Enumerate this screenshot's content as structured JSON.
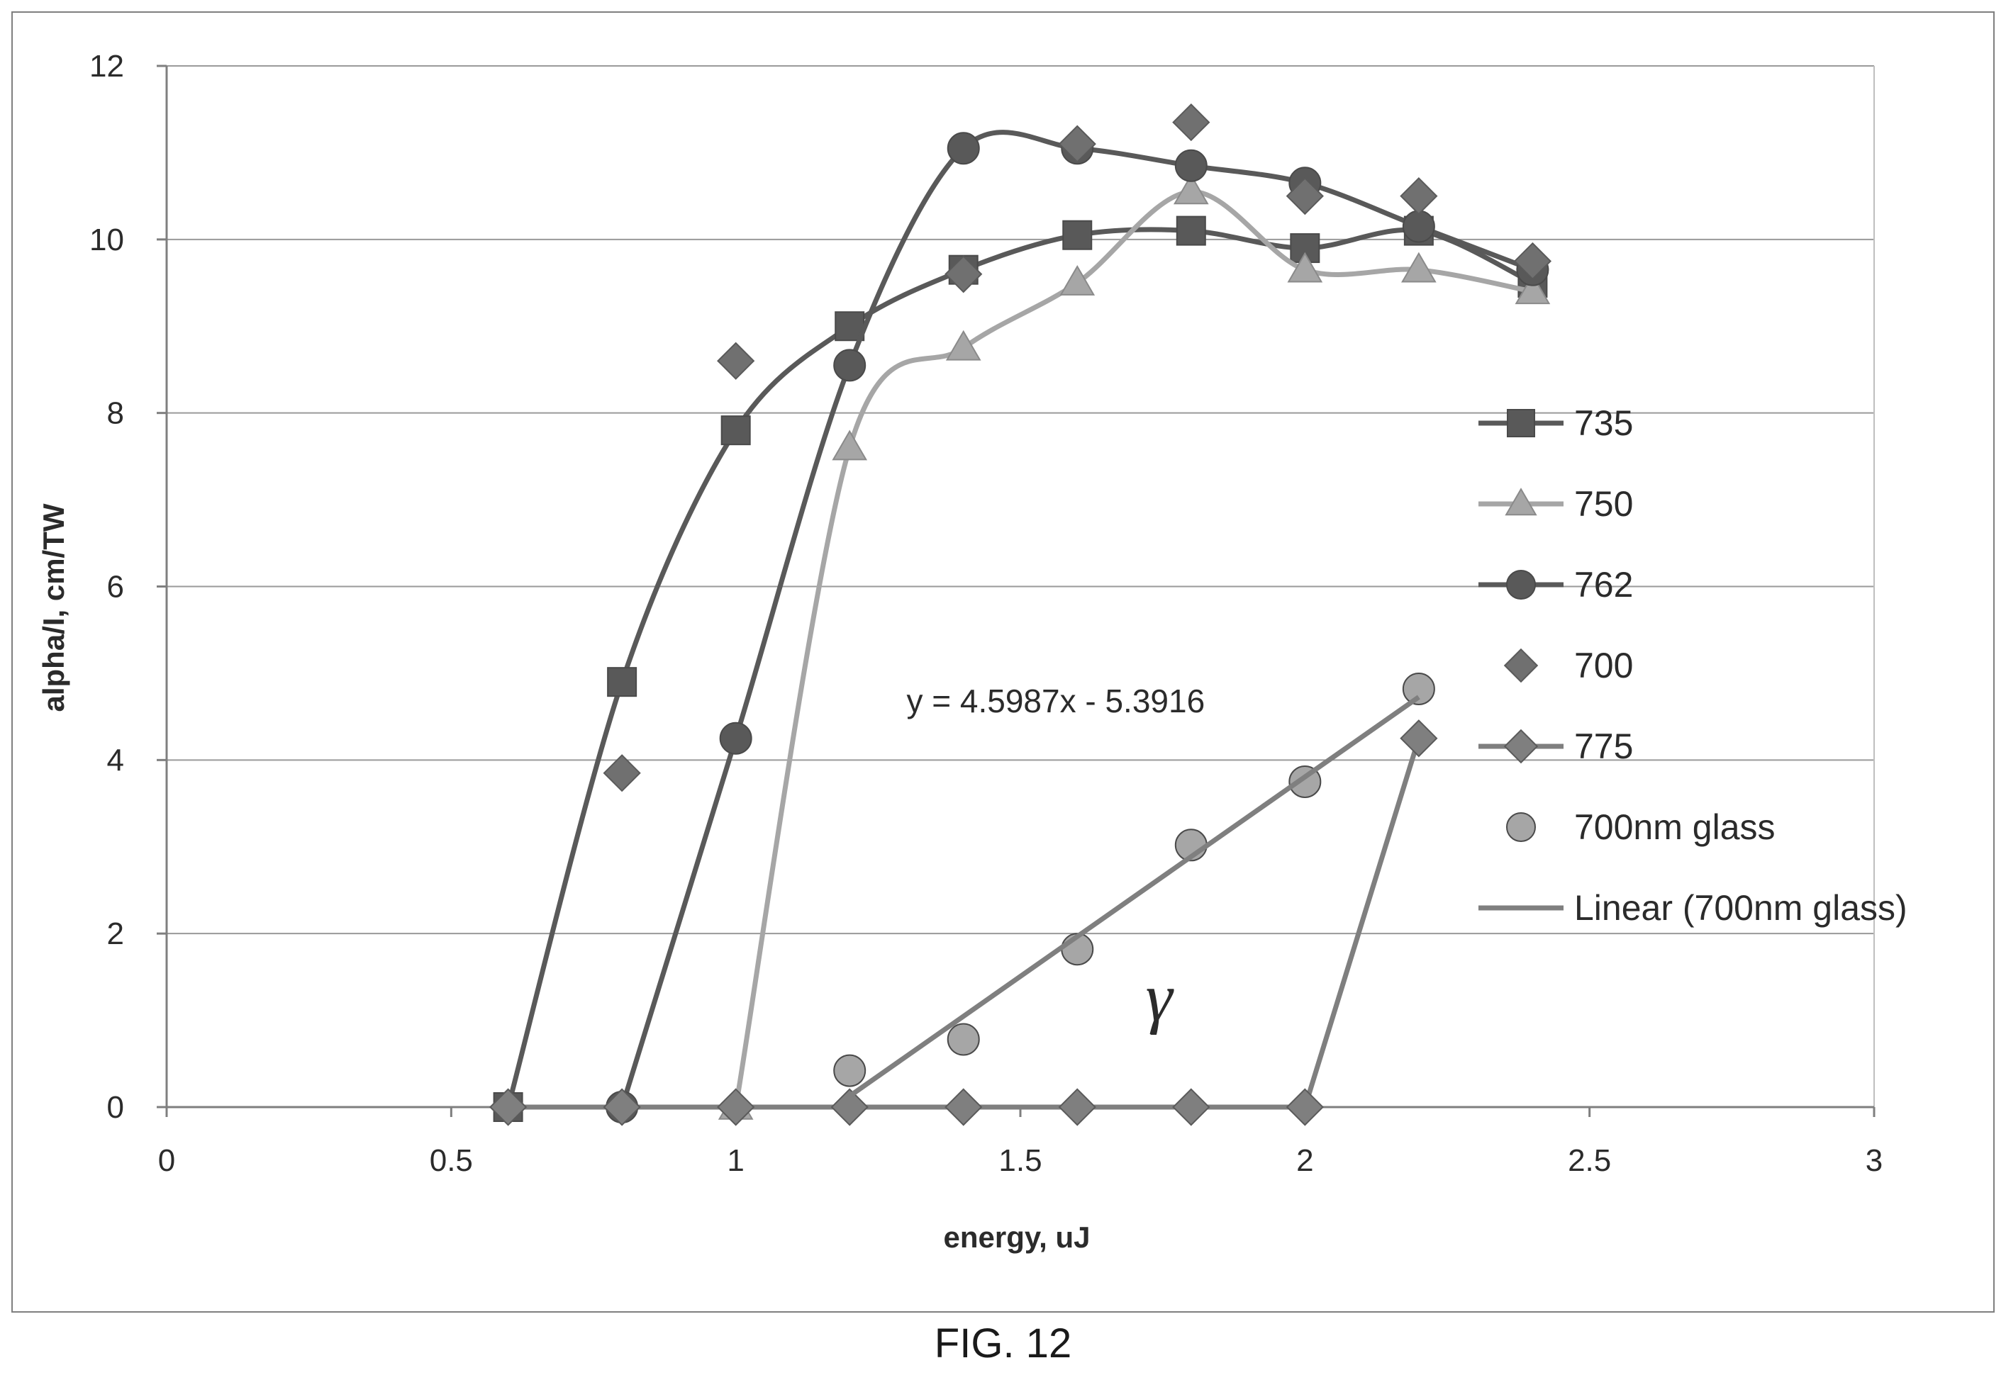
{
  "figure": {
    "caption": "FIG. 12"
  },
  "chart_data": {
    "type": "scatter",
    "title": "",
    "xlabel": "energy, uJ",
    "ylabel": "alpha/I, cm/TW",
    "xlim": [
      0,
      3
    ],
    "ylim": [
      0,
      12
    ],
    "xticks": [
      "0",
      "0.5",
      "1",
      "1.5",
      "2",
      "2.5",
      "3"
    ],
    "yticks": [
      "0",
      "2",
      "4",
      "6",
      "8",
      "10",
      "12"
    ],
    "grid": "horizontal",
    "legend_position": "right",
    "series": [
      {
        "name": "735",
        "marker": "square",
        "line": "smooth",
        "color": "#595959",
        "x": [
          0.6,
          0.8,
          1.0,
          1.2,
          1.4,
          1.6,
          1.8,
          2.0,
          2.2,
          2.4
        ],
        "y": [
          0.0,
          4.9,
          7.8,
          9.0,
          9.65,
          10.05,
          10.1,
          9.9,
          10.1,
          9.5
        ]
      },
      {
        "name": "750",
        "marker": "triangle",
        "line": "smooth",
        "color": "#a6a6a6",
        "x": [
          1.0,
          1.2,
          1.4,
          1.6,
          1.8,
          2.0,
          2.2,
          2.4
        ],
        "y": [
          0.0,
          7.6,
          8.75,
          9.5,
          10.55,
          9.65,
          9.65,
          9.4
        ]
      },
      {
        "name": "762",
        "marker": "circle",
        "line": "smooth",
        "color": "#595959",
        "x": [
          0.8,
          1.0,
          1.2,
          1.4,
          1.6,
          1.8,
          2.0,
          2.2,
          2.4
        ],
        "y": [
          0.0,
          4.25,
          8.55,
          11.05,
          11.05,
          10.85,
          10.65,
          10.15,
          9.65
        ]
      },
      {
        "name": "700",
        "marker": "diamond",
        "line": "none",
        "color": "#707070",
        "x": [
          0.8,
          1.0,
          1.4,
          1.6,
          1.8,
          2.0,
          2.2,
          2.4
        ],
        "y": [
          3.85,
          8.6,
          9.6,
          11.1,
          11.35,
          10.5,
          10.5,
          9.75
        ]
      },
      {
        "name": "775",
        "marker": "diamond",
        "line": "straight",
        "color": "#7f7f7f",
        "x": [
          0.6,
          0.8,
          1.0,
          1.2,
          1.4,
          1.6,
          1.8,
          2.0,
          2.2
        ],
        "y": [
          0.0,
          0.0,
          0.0,
          0.0,
          0.0,
          0.0,
          0.0,
          0.0,
          4.25
        ]
      },
      {
        "name": "700nm glass",
        "marker": "circle",
        "line": "none",
        "color": "#a6a6a6",
        "x": [
          1.2,
          1.4,
          1.6,
          1.8,
          2.0,
          2.2
        ],
        "y": [
          0.42,
          0.78,
          1.82,
          3.02,
          3.75,
          4.82
        ]
      },
      {
        "name": "Linear (700nm glass)",
        "marker": "none",
        "line": "straight",
        "color": "#7f7f7f",
        "slope": 4.5987,
        "intercept": -5.3916,
        "x_range": [
          1.2,
          2.2
        ]
      }
    ],
    "annotations": [
      {
        "text": "y = 4.5987x - 5.3916",
        "x": 1.3,
        "y": 4.55
      },
      {
        "text": "γ",
        "x": 1.72,
        "y": 1.0
      }
    ]
  }
}
